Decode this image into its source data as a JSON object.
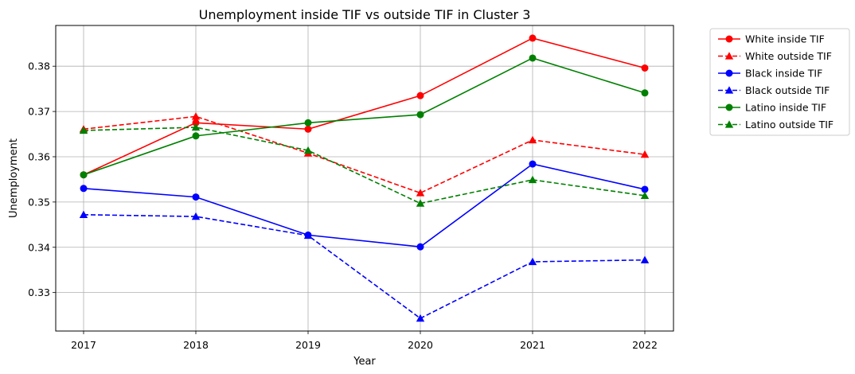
{
  "chart_data": {
    "type": "line",
    "title": "Unemployment inside TIF vs outside TIF in Cluster 3",
    "xlabel": "Year",
    "ylabel": "Unemployment",
    "x": [
      "2017",
      "2018",
      "2019",
      "2020",
      "2021",
      "2022"
    ],
    "ylim": [
      0.3215,
      0.389
    ],
    "yticks": [
      "0.33",
      "0.34",
      "0.35",
      "0.36",
      "0.37",
      "0.38"
    ],
    "grid": true,
    "legend_position": "outside-right",
    "series": [
      {
        "name": "White inside TIF",
        "color": "#ff0000",
        "style": "solid",
        "marker": "circle",
        "values": [
          0.356,
          0.3675,
          0.3661,
          0.3735,
          0.3862,
          0.3796
        ]
      },
      {
        "name": "White outside TIF",
        "color": "#ff0000",
        "style": "dashed",
        "marker": "triangle",
        "values": [
          0.3661,
          0.3689,
          0.3608,
          0.352,
          0.3637,
          0.3605
        ]
      },
      {
        "name": "Black inside TIF",
        "color": "#0000ff",
        "style": "solid",
        "marker": "circle",
        "values": [
          0.353,
          0.3511,
          0.3427,
          0.3401,
          0.3584,
          0.3528
        ]
      },
      {
        "name": "Black outside TIF",
        "color": "#0000ff",
        "style": "dashed",
        "marker": "triangle",
        "values": [
          0.3472,
          0.3468,
          0.3426,
          0.3243,
          0.3368,
          0.3372
        ]
      },
      {
        "name": "Latino inside TIF",
        "color": "#008000",
        "style": "solid",
        "marker": "circle",
        "values": [
          0.356,
          0.3646,
          0.3675,
          0.3693,
          0.3818,
          0.3741
        ]
      },
      {
        "name": "Latino outside TIF",
        "color": "#008000",
        "style": "dashed",
        "marker": "triangle",
        "values": [
          0.3658,
          0.3665,
          0.3614,
          0.3497,
          0.3549,
          0.3514
        ]
      }
    ]
  }
}
